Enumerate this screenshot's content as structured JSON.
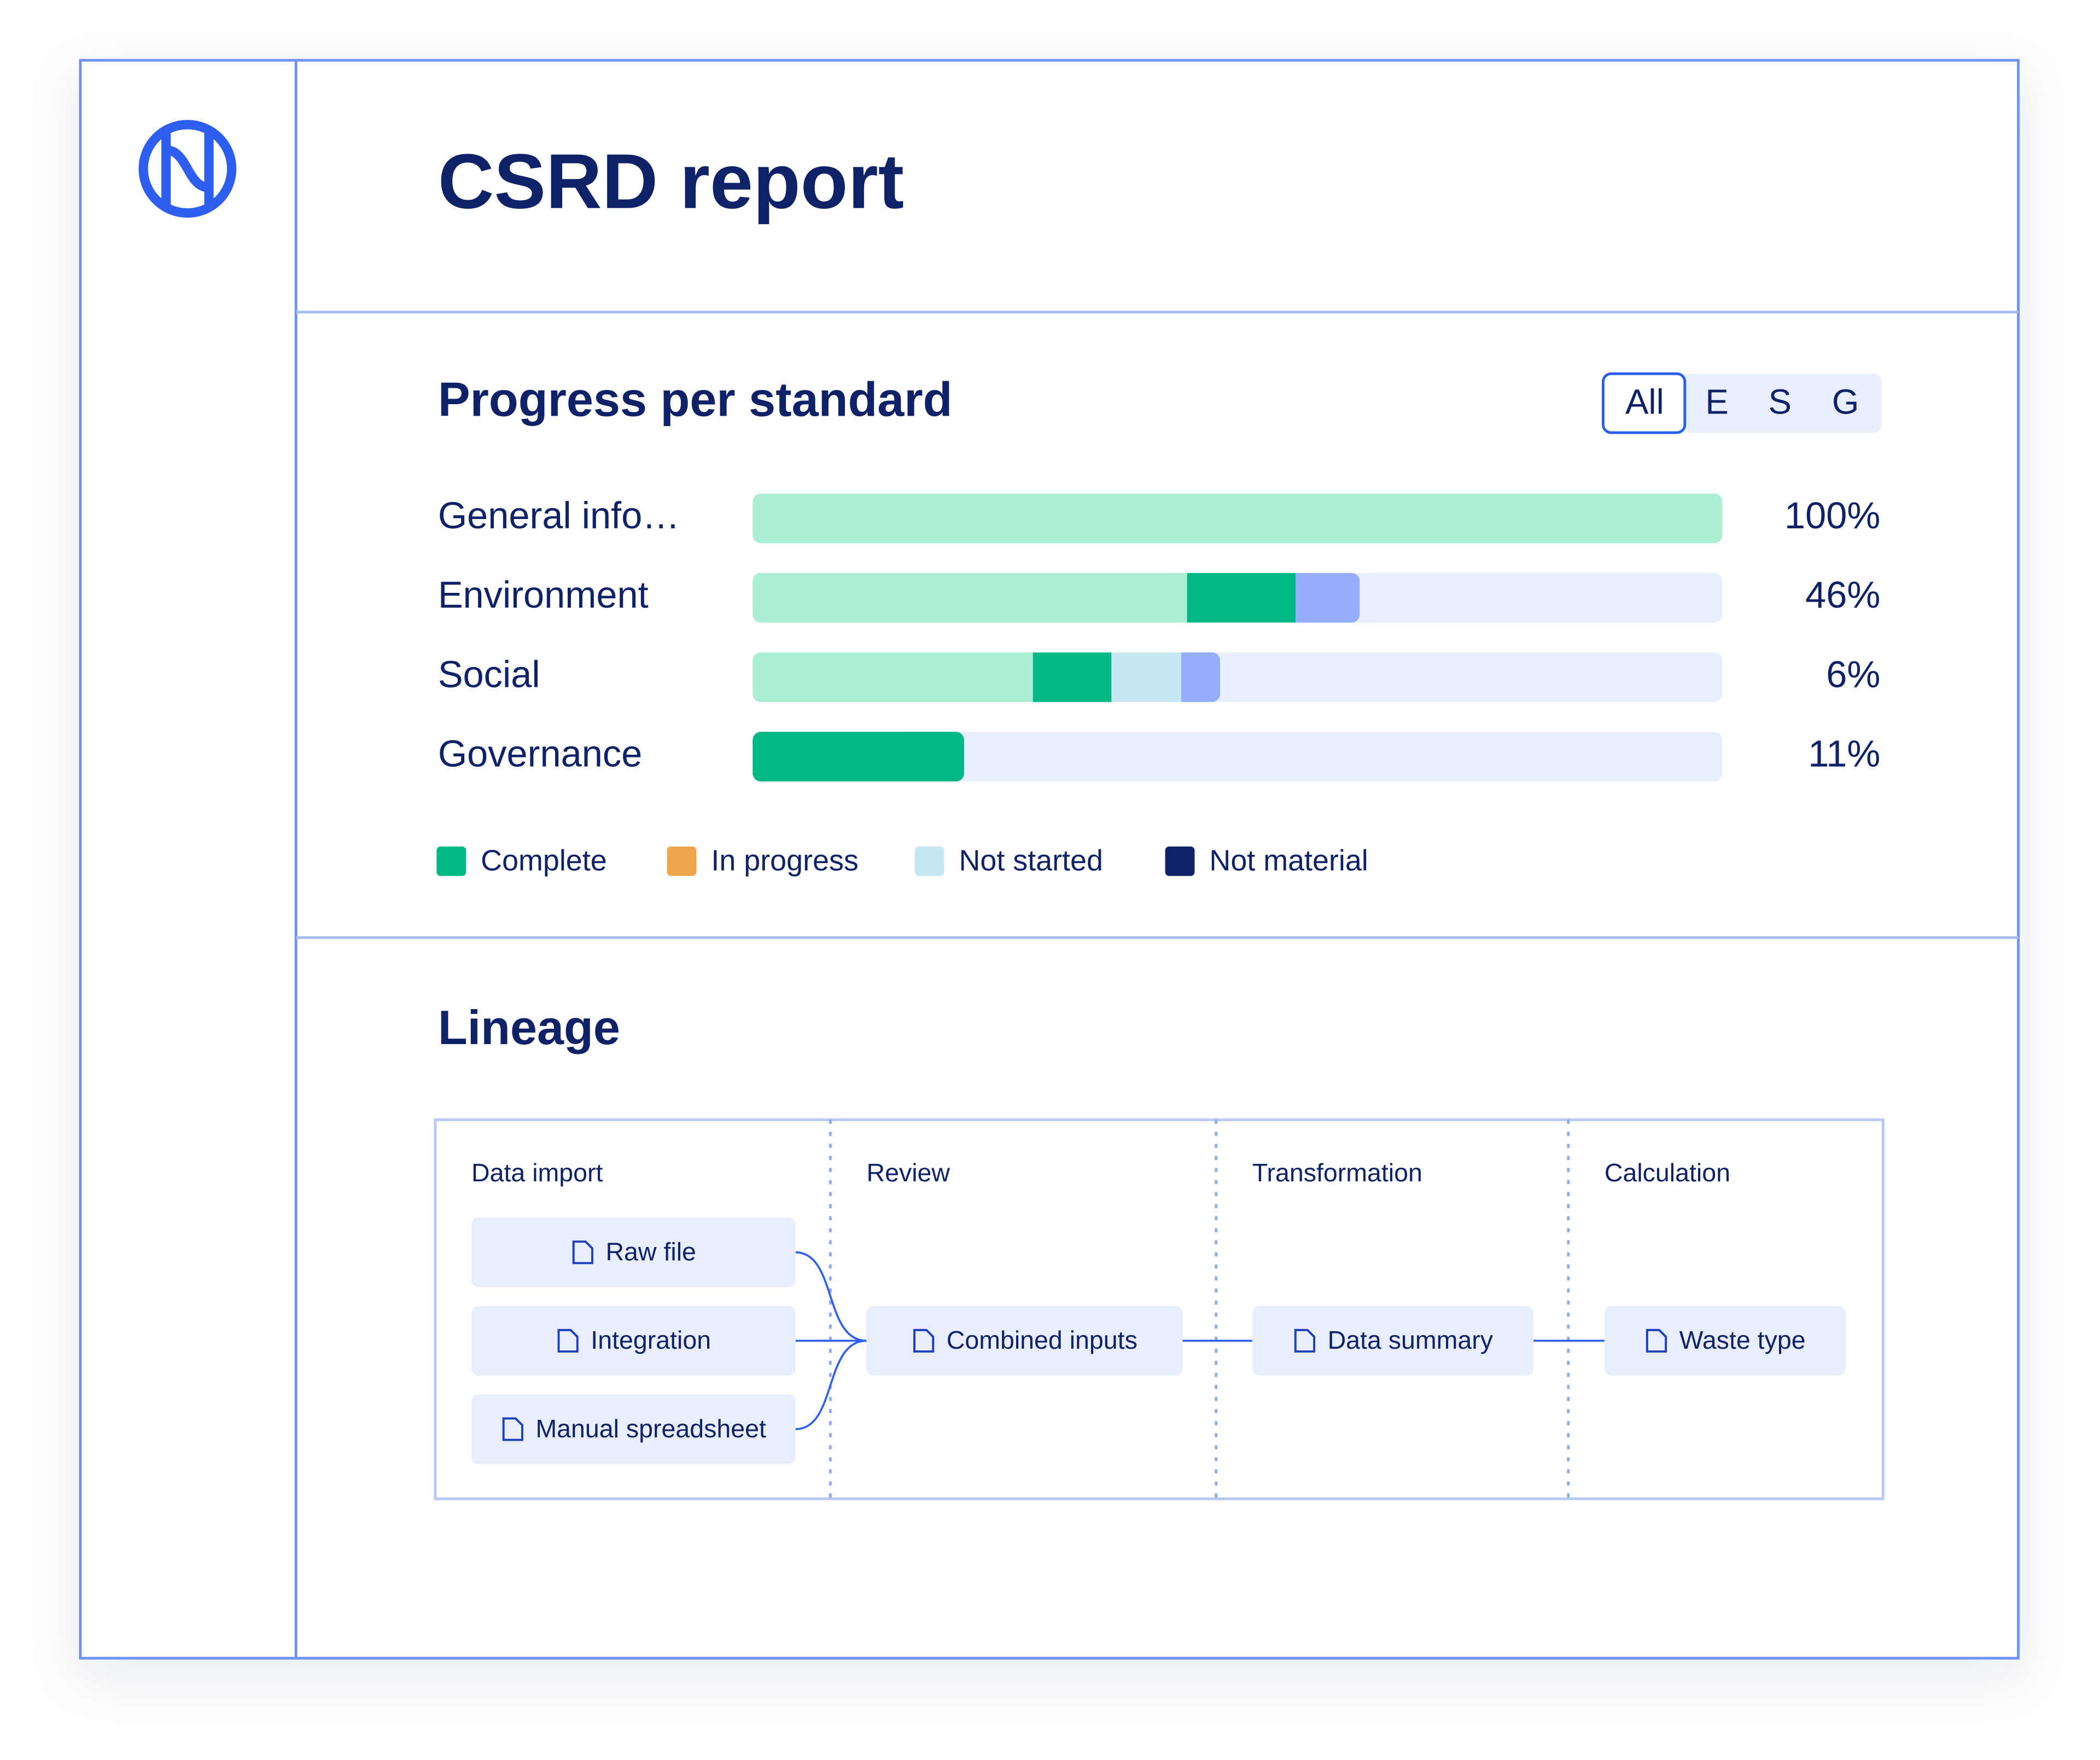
{
  "app": {
    "title": "CSRD report"
  },
  "progress": {
    "title": "Progress per standard",
    "filters": [
      "All",
      "E",
      "S",
      "G"
    ],
    "selected_filter": 0,
    "rows": [
      {
        "label": "General info…",
        "percent": "100%",
        "segments": [
          {
            "color": "#abefd3",
            "value": 100
          }
        ]
      },
      {
        "label": "Environment",
        "percent": "46%",
        "segments": [
          {
            "color": "#abefd3",
            "value": 44.8
          },
          {
            "color": "#00b884",
            "value": 11.2
          },
          {
            "color": "#94aefc",
            "value": 6.6
          }
        ]
      },
      {
        "label": "Social",
        "percent": "6%",
        "segments": [
          {
            "color": "#abefd3",
            "value": 28.9
          },
          {
            "color": "#00b884",
            "value": 8.1
          },
          {
            "color": "#c6e7f2",
            "value": 7.2
          },
          {
            "color": "#94aefc",
            "value": 4
          }
        ]
      },
      {
        "label": "Governance",
        "percent": "11%",
        "segments": [
          {
            "color": "#00b884",
            "value": 21.8
          }
        ]
      }
    ],
    "legend": [
      {
        "label": "Complete",
        "color": "#00b884"
      },
      {
        "label": "In progress",
        "color": "#eda64c"
      },
      {
        "label": "Not started",
        "color": "#c6e7f2"
      },
      {
        "label": "Not material",
        "color": "#0f2167"
      }
    ]
  },
  "lineage": {
    "title": "Lineage",
    "columns": [
      {
        "title": "Data import",
        "nodes": [
          "Raw file",
          "Integration",
          "Manual spreadsheet"
        ]
      },
      {
        "title": "Review",
        "nodes": [
          "Combined inputs"
        ]
      },
      {
        "title": "Transformation",
        "nodes": [
          "Data summary"
        ]
      },
      {
        "title": "Calculation",
        "nodes": [
          "Waste type"
        ]
      }
    ]
  }
}
